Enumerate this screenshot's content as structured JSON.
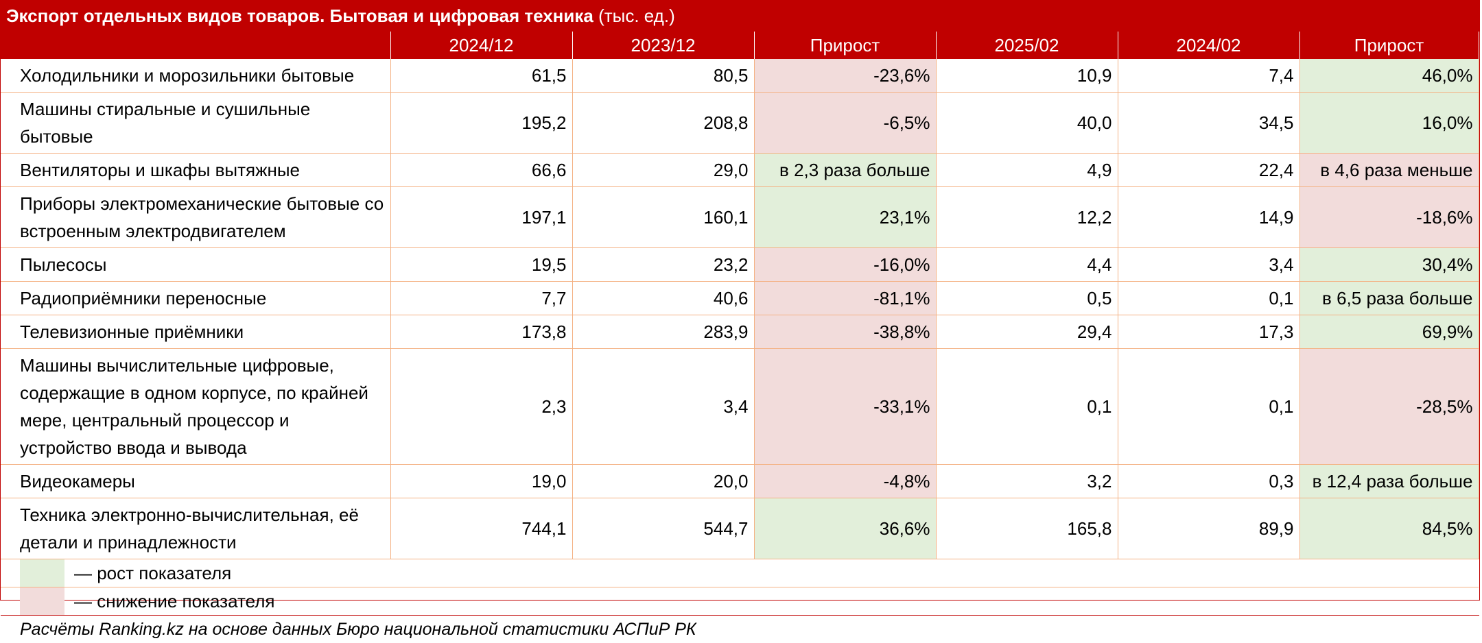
{
  "title": {
    "bold": "Экспорт отдельных видов товаров. Бытовая и цифровая техника",
    "suffix": "(тыс. ед.)"
  },
  "colors": {
    "header_bg": "#c00000",
    "growth": "#e2efda",
    "decline": "#f2dcdb",
    "grid": "#f4b183"
  },
  "chart_data": {
    "type": "table",
    "columns": [
      "",
      "2024/12",
      "2023/12",
      "Прирост",
      "2025/02",
      "2024/02",
      "Прирост"
    ],
    "rows": [
      {
        "name": "Холодильники и морозильники бытовые",
        "v1": "61,5",
        "v2": "80,5",
        "g1": "-23,6%",
        "g1_trend": "down",
        "v3": "10,9",
        "v4": "7,4",
        "g2": "46,0%",
        "g2_trend": "up"
      },
      {
        "name": "Машины стиральные и сушильные бытовые",
        "v1": "195,2",
        "v2": "208,8",
        "g1": "-6,5%",
        "g1_trend": "down",
        "v3": "40,0",
        "v4": "34,5",
        "g2": "16,0%",
        "g2_trend": "up"
      },
      {
        "name": "Вентиляторы и шкафы вытяжные",
        "v1": "66,6",
        "v2": "29,0",
        "g1": "в 2,3 раза больше",
        "g1_trend": "up",
        "v3": "4,9",
        "v4": "22,4",
        "g2": "в 4,6 раза меньше",
        "g2_trend": "down"
      },
      {
        "name": "Приборы электромеханические бытовые со встроенным электродвигателем",
        "v1": "197,1",
        "v2": "160,1",
        "g1": "23,1%",
        "g1_trend": "up",
        "v3": "12,2",
        "v4": "14,9",
        "g2": "-18,6%",
        "g2_trend": "down"
      },
      {
        "name": "Пылесосы",
        "v1": "19,5",
        "v2": "23,2",
        "g1": "-16,0%",
        "g1_trend": "down",
        "v3": "4,4",
        "v4": "3,4",
        "g2": "30,4%",
        "g2_trend": "up"
      },
      {
        "name": "Радиоприёмники переносные",
        "v1": "7,7",
        "v2": "40,6",
        "g1": "-81,1%",
        "g1_trend": "down",
        "v3": "0,5",
        "v4": "0,1",
        "g2": "в 6,5 раза больше",
        "g2_trend": "up"
      },
      {
        "name": "Телевизионные приёмники",
        "v1": "173,8",
        "v2": "283,9",
        "g1": "-38,8%",
        "g1_trend": "down",
        "v3": "29,4",
        "v4": "17,3",
        "g2": "69,9%",
        "g2_trend": "up"
      },
      {
        "name": "Машины вычислительные цифровые, содержащие в одном корпусе, по крайней мере, центральный процессор и устройство ввода и вывода",
        "v1": "2,3",
        "v2": "3,4",
        "g1": "-33,1%",
        "g1_trend": "down",
        "v3": "0,1",
        "v4": "0,1",
        "g2": "-28,5%",
        "g2_trend": "down"
      },
      {
        "name": "Видеокамеры",
        "v1": "19,0",
        "v2": "20,0",
        "g1": "-4,8%",
        "g1_trend": "down",
        "v3": "3,2",
        "v4": "0,3",
        "g2": "в 12,4 раза больше",
        "g2_trend": "up"
      },
      {
        "name": "Техника электронно-вычислительная, её детали и принадлежности",
        "v1": "744,1",
        "v2": "544,7",
        "g1": "36,6%",
        "g1_trend": "up",
        "v3": "165,8",
        "v4": "89,9",
        "g2": "84,5%",
        "g2_trend": "up"
      }
    ]
  },
  "legend": {
    "growth": "— рост показателя",
    "decline": "— снижение показателя"
  },
  "footer": "Расчёты Ranking.kz на основе данных Бюро национальной статистики АСПиР РК"
}
